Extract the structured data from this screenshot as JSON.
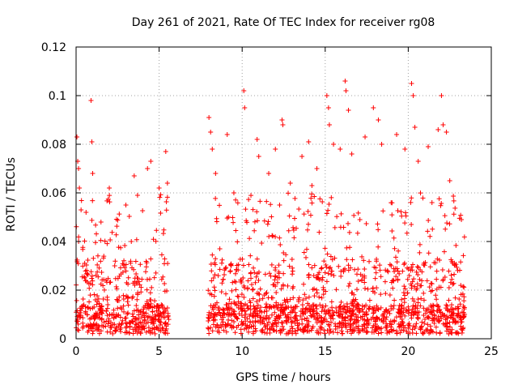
{
  "chart_data": {
    "type": "scatter",
    "title": "Day 261 of 2021, Rate Of TEC Index for receiver rg08",
    "xlabel": "GPS time / hours",
    "ylabel": "ROTI / TECUs",
    "xlim": [
      0,
      25
    ],
    "ylim": [
      0,
      0.12
    ],
    "x_ticks": [
      0,
      5,
      10,
      15,
      20,
      25
    ],
    "x_tick_labels": [
      "0",
      "5",
      "10",
      "15",
      "20",
      "25"
    ],
    "y_ticks": [
      0,
      0.02,
      0.04,
      0.06,
      0.08,
      0.1,
      0.12
    ],
    "y_tick_labels": [
      "0",
      "0.02",
      "0.04",
      "0.06",
      "0.08",
      "0.1",
      "0.12"
    ],
    "grid": true,
    "marker": "+",
    "color": "#ff0000",
    "series": [
      {
        "segments": [
          [
            0,
            5.6
          ],
          [
            7.9,
            23.4
          ]
        ],
        "points": [
          [
            0.05,
            0.083
          ],
          [
            0.1,
            0.073
          ],
          [
            0.15,
            0.07
          ],
          [
            0.2,
            0.062
          ],
          [
            0.3,
            0.053
          ],
          [
            0.6,
            0.052
          ],
          [
            0.9,
            0.098
          ],
          [
            0.95,
            0.081
          ],
          [
            1.0,
            0.068
          ],
          [
            1.5,
            0.048
          ],
          [
            2.0,
            0.062
          ],
          [
            3.0,
            0.055
          ],
          [
            3.5,
            0.067
          ],
          [
            3.7,
            0.059
          ],
          [
            4.3,
            0.07
          ],
          [
            4.5,
            0.073
          ],
          [
            5.0,
            0.062
          ],
          [
            5.4,
            0.077
          ],
          [
            5.5,
            0.064
          ],
          [
            8.0,
            0.091
          ],
          [
            8.1,
            0.085
          ],
          [
            8.2,
            0.078
          ],
          [
            8.4,
            0.068
          ],
          [
            9.1,
            0.084
          ],
          [
            9.5,
            0.06
          ],
          [
            10.1,
            0.102
          ],
          [
            10.15,
            0.095
          ],
          [
            10.9,
            0.082
          ],
          [
            11.0,
            0.075
          ],
          [
            11.6,
            0.068
          ],
          [
            12.0,
            0.078
          ],
          [
            12.4,
            0.09
          ],
          [
            12.45,
            0.088
          ],
          [
            12.9,
            0.064
          ],
          [
            13.6,
            0.075
          ],
          [
            14.0,
            0.081
          ],
          [
            14.2,
            0.063
          ],
          [
            14.5,
            0.07
          ],
          [
            15.1,
            0.1
          ],
          [
            15.2,
            0.095
          ],
          [
            15.25,
            0.088
          ],
          [
            15.5,
            0.08
          ],
          [
            15.9,
            0.078
          ],
          [
            16.2,
            0.106
          ],
          [
            16.25,
            0.102
          ],
          [
            16.4,
            0.094
          ],
          [
            16.6,
            0.076
          ],
          [
            17.4,
            0.083
          ],
          [
            17.9,
            0.095
          ],
          [
            18.2,
            0.09
          ],
          [
            18.4,
            0.08
          ],
          [
            19.3,
            0.084
          ],
          [
            19.8,
            0.078
          ],
          [
            20.2,
            0.105
          ],
          [
            20.3,
            0.1
          ],
          [
            20.4,
            0.087
          ],
          [
            20.6,
            0.073
          ],
          [
            21.2,
            0.079
          ],
          [
            21.8,
            0.086
          ],
          [
            22.0,
            0.1
          ],
          [
            22.1,
            0.088
          ],
          [
            22.3,
            0.085
          ],
          [
            22.5,
            0.065
          ],
          [
            23.2,
            0.049
          ]
        ]
      }
    ]
  }
}
